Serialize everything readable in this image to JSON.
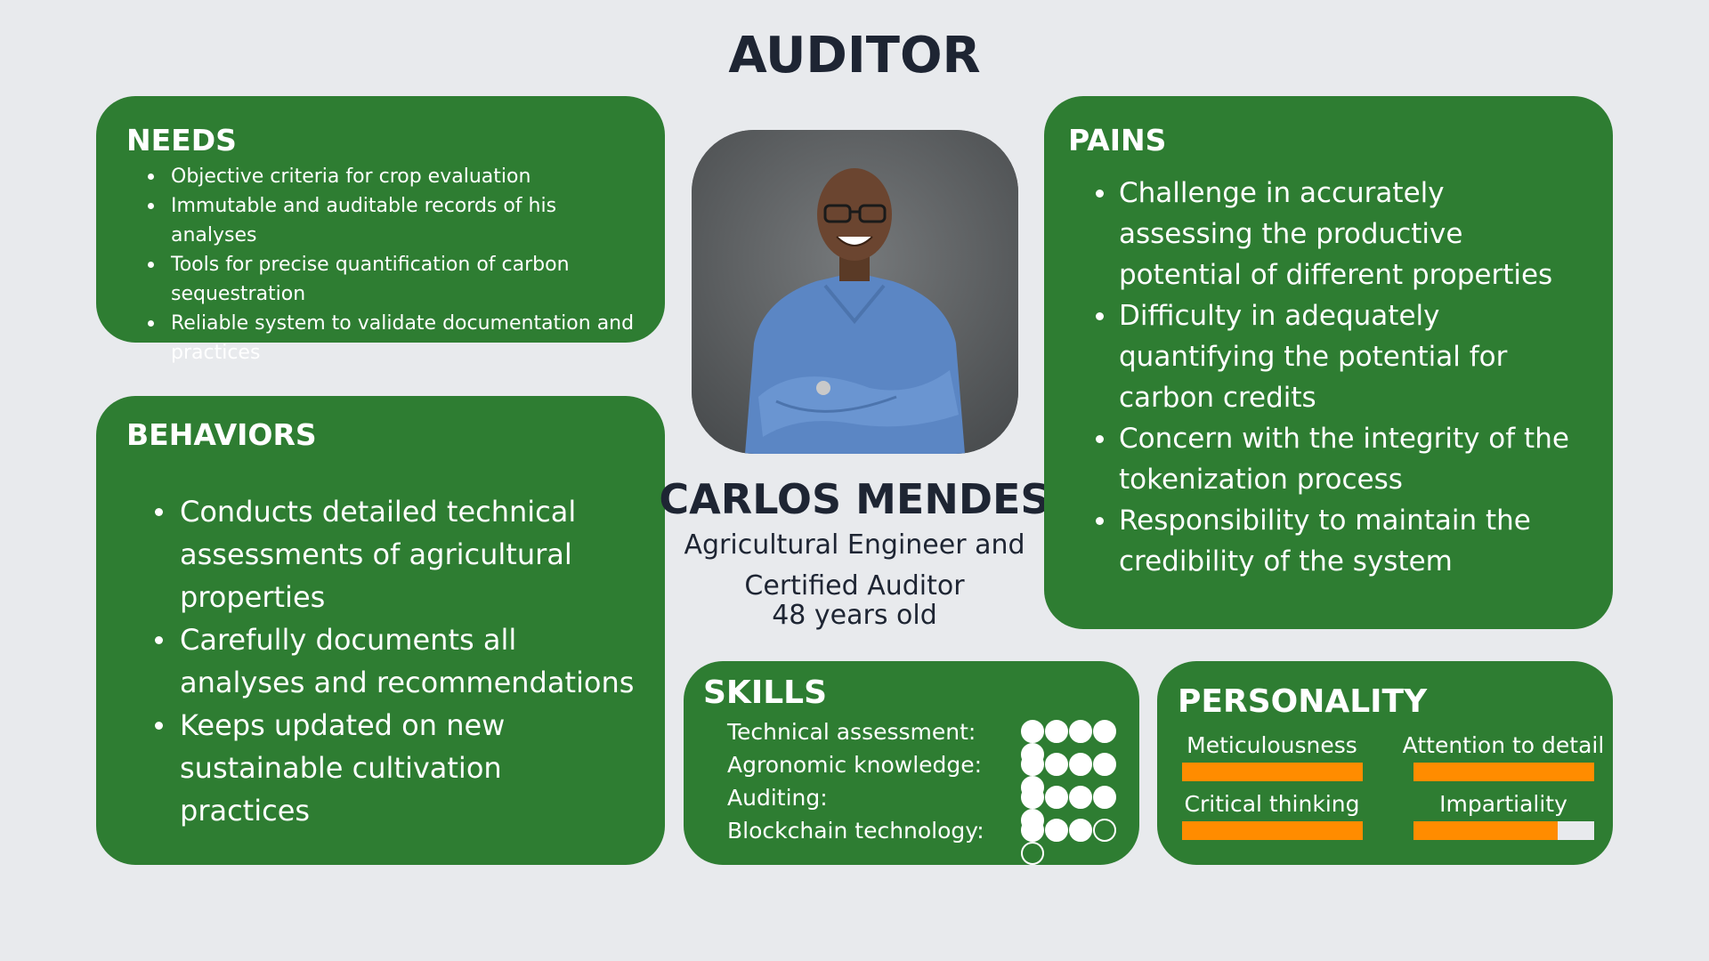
{
  "title": "AUDITOR",
  "needs": {
    "heading": "NEEDS",
    "items": [
      "Objective criteria for crop evaluation",
      "Immutable and auditable records of his analyses",
      "Tools for precise quantification of carbon sequestration",
      "Reliable system to validate documentation and practices"
    ]
  },
  "behaviors": {
    "heading": "BEHAVIORS",
    "items": [
      "Conducts detailed technical assessments of agricultural properties",
      "Carefully documents all analyses and recommendations",
      "Keeps updated on new sustainable cultivation practices"
    ]
  },
  "pains": {
    "heading": "PAINS",
    "items": [
      "Challenge in accurately assessing the productive potential of different properties",
      "Difficulty in adequately quantifying the potential for carbon credits",
      "Concern with the integrity of the tokenization process",
      "Responsibility to maintain the credibility of the system"
    ]
  },
  "profile": {
    "photo_icon": "portrait-photo",
    "name": "CARLOS MENDES",
    "role": "Agricultural Engineer and Certified Auditor",
    "age": "48 years old"
  },
  "skills": {
    "heading": "SKILLS",
    "max": 5,
    "items": [
      {
        "label": "Technical assessment:",
        "rating": 5
      },
      {
        "label": "Agronomic knowledge:",
        "rating": 5
      },
      {
        "label": "Auditing:",
        "rating": 5
      },
      {
        "label": "Blockchain technology:",
        "rating": 3
      }
    ]
  },
  "personality": {
    "heading": "PERSONALITY",
    "traits": [
      {
        "label": "Meticulousness",
        "level": 1.0
      },
      {
        "label": "Attention to detail",
        "level": 1.0
      },
      {
        "label": "Critical thinking",
        "level": 1.0
      },
      {
        "label": "Impartiality",
        "level": 0.8
      }
    ]
  },
  "colors": {
    "background": "#e8eaed",
    "card": "#2e7d32",
    "bar_fill": "#ff8c00",
    "bar_track": "#e8eaed",
    "heading_text": "#1e2533"
  }
}
